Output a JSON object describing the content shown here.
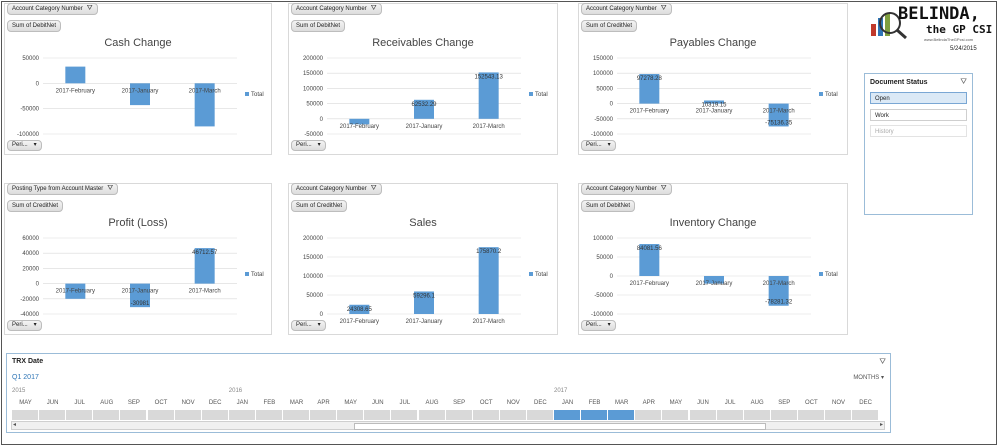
{
  "colors": {
    "bar": "#5b9bd5",
    "accent": "#2e75b6",
    "selected": "#5b9bd5",
    "grid": "#d9d9d9"
  },
  "logo": {
    "name": "BELINDA,",
    "tagline": "the GP CSI",
    "url": "www.BelindaTheGPcsi.com",
    "date": "5/24/2015"
  },
  "charts": [
    {
      "id": "cash",
      "filter_label": "Account Category Number",
      "value_label": "Sum of DebitNet",
      "period_label": "Peri...",
      "chart_data": {
        "type": "bar",
        "title": "Cash Change",
        "categories": [
          "2017-February",
          "2017-January",
          "2017-March"
        ],
        "series": [
          {
            "name": "Total",
            "values": [
              33000,
              -43000,
              -85000
            ]
          }
        ],
        "ylim": [
          -100000,
          50000
        ],
        "yticks": [
          "50000",
          "0",
          "-50000",
          "-100000"
        ],
        "data_labels": []
      }
    },
    {
      "id": "receivables",
      "filter_label": "Account Category Number",
      "value_label": "Sum of DebitNet",
      "period_label": "Peri...",
      "chart_data": {
        "type": "bar",
        "title": "Receivables Change",
        "categories": [
          "2017-February",
          "2017-January",
          "2017-March"
        ],
        "series": [
          {
            "name": "Total",
            "values": [
              -18000,
              62532.29,
              152543.13
            ]
          }
        ],
        "ylim": [
          -50000,
          200000
        ],
        "yticks": [
          "200000",
          "150000",
          "100000",
          "50000",
          "0",
          "-50000"
        ],
        "data_labels": [
          "",
          "62532.29",
          "152543.13"
        ]
      }
    },
    {
      "id": "payables",
      "filter_label": "Account Category Number",
      "value_label": "Sum of CreditNet",
      "period_label": "Peri...",
      "chart_data": {
        "type": "bar",
        "title": "Payables Change",
        "categories": [
          "2017-February",
          "2017-January",
          "2017-March"
        ],
        "series": [
          {
            "name": "Total",
            "values": [
              97278.28,
              10319.15,
              -75136.35
            ]
          }
        ],
        "ylim": [
          -100000,
          150000
        ],
        "yticks": [
          "150000",
          "100000",
          "50000",
          "0",
          "-50000",
          "-100000"
        ],
        "data_labels": [
          "97278.28",
          "10319.15",
          "-75136.35"
        ]
      }
    },
    {
      "id": "profit",
      "filter_label": "Posting Type from Account Master",
      "value_label": "Sum of CreditNet",
      "period_label": "Peri...",
      "chart_data": {
        "type": "bar",
        "title": "Profit (Loss)",
        "categories": [
          "2017-February",
          "2017-January",
          "2017-March"
        ],
        "series": [
          {
            "name": "Total",
            "values": [
              -20000,
              -30981,
              46712.57
            ]
          }
        ],
        "ylim": [
          -40000,
          60000
        ],
        "yticks": [
          "60000",
          "40000",
          "20000",
          "0",
          "-20000",
          "-40000"
        ],
        "data_labels": [
          "",
          "-30981",
          "46712.57"
        ]
      }
    },
    {
      "id": "sales",
      "filter_label": "Account Category Number",
      "value_label": "Sum of CreditNet",
      "period_label": "Peri...",
      "chart_data": {
        "type": "bar",
        "title": "Sales",
        "categories": [
          "2017-February",
          "2017-January",
          "2017-March"
        ],
        "series": [
          {
            "name": "Total",
            "values": [
              24308.65,
              59296.1,
              175870.2
            ]
          }
        ],
        "ylim": [
          0,
          200000
        ],
        "yticks": [
          "200000",
          "150000",
          "100000",
          "50000",
          "0"
        ],
        "data_labels": [
          "24308.65",
          "59296.1",
          "175870.2"
        ]
      }
    },
    {
      "id": "inventory",
      "filter_label": "Account Category Number",
      "value_label": "Sum of DebitNet",
      "period_label": "Peri...",
      "chart_data": {
        "type": "bar",
        "title": "Inventory Change",
        "categories": [
          "2017-February",
          "2017-January",
          "2017-March"
        ],
        "series": [
          {
            "name": "Total",
            "values": [
              84081.56,
              -20000,
              -78281.32
            ]
          }
        ],
        "ylim": [
          -100000,
          100000
        ],
        "yticks": [
          "100000",
          "50000",
          "0",
          "-50000",
          "-100000"
        ],
        "data_labels": [
          "84081.56",
          "",
          "-78281.32"
        ]
      }
    }
  ],
  "doc_status": {
    "title": "Document Status",
    "items": [
      "Open",
      "Work",
      "History"
    ],
    "selected": "Open"
  },
  "timeline": {
    "title": "TRX Date",
    "selection": "Q1 2017",
    "unit": "MONTHS",
    "years": [
      "2015",
      "2016",
      "2017"
    ],
    "months": [
      "MAY",
      "JUN",
      "JUL",
      "AUG",
      "SEP",
      "OCT",
      "NOV",
      "DEC",
      "JAN",
      "FEB",
      "MAR",
      "APR",
      "MAY",
      "JUN",
      "JUL",
      "AUG",
      "SEP",
      "OCT",
      "NOV",
      "DEC",
      "JAN",
      "FEB",
      "MAR",
      "APR",
      "MAY",
      "JUN",
      "JUL",
      "AUG",
      "SEP",
      "OCT",
      "NOV",
      "DEC"
    ],
    "selected_months": [
      20,
      21,
      22
    ]
  }
}
